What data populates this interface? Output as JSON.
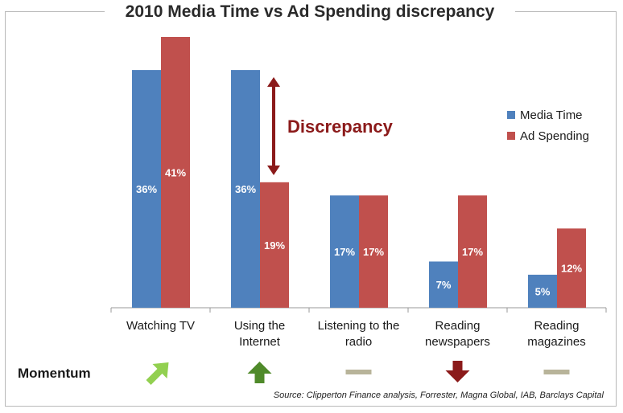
{
  "chart_data": {
    "type": "bar",
    "title": "2010 Media Time vs Ad Spending discrepancy",
    "categories": [
      "Watching TV",
      "Using the\nInternet",
      "Listening to the\nradio",
      "Reading\nnewspapers",
      "Reading\nmagazines"
    ],
    "series": [
      {
        "name": "Media Time",
        "color": "#4f81bd",
        "values": [
          36,
          36,
          17,
          7,
          5
        ],
        "labels": [
          "36%",
          "36%",
          "17%",
          "7%",
          "5%"
        ]
      },
      {
        "name": "Ad Spending",
        "color": "#c0504d",
        "values": [
          41,
          19,
          17,
          17,
          12
        ],
        "labels": [
          "41%",
          "19%",
          "17%",
          "17%",
          "12%"
        ]
      }
    ],
    "ylim": [
      0,
      41
    ],
    "legend_position": "right",
    "grid": false
  },
  "annotation": {
    "text": "Discrepancy",
    "color": "#8b1a1a"
  },
  "momentum": {
    "label": "Momentum",
    "icons": [
      "arrow-up-right-icon",
      "arrow-up-icon",
      "flat-dash-icon",
      "arrow-down-icon",
      "flat-dash-icon"
    ],
    "colors": [
      "#92d050",
      "#4f8a2a",
      "#b8b49a",
      "#8b1a1a",
      "#b8b49a"
    ]
  },
  "source": "Source: Clipperton Finance analysis, Forrester, Magna Global, IAB, Barclays Capital"
}
